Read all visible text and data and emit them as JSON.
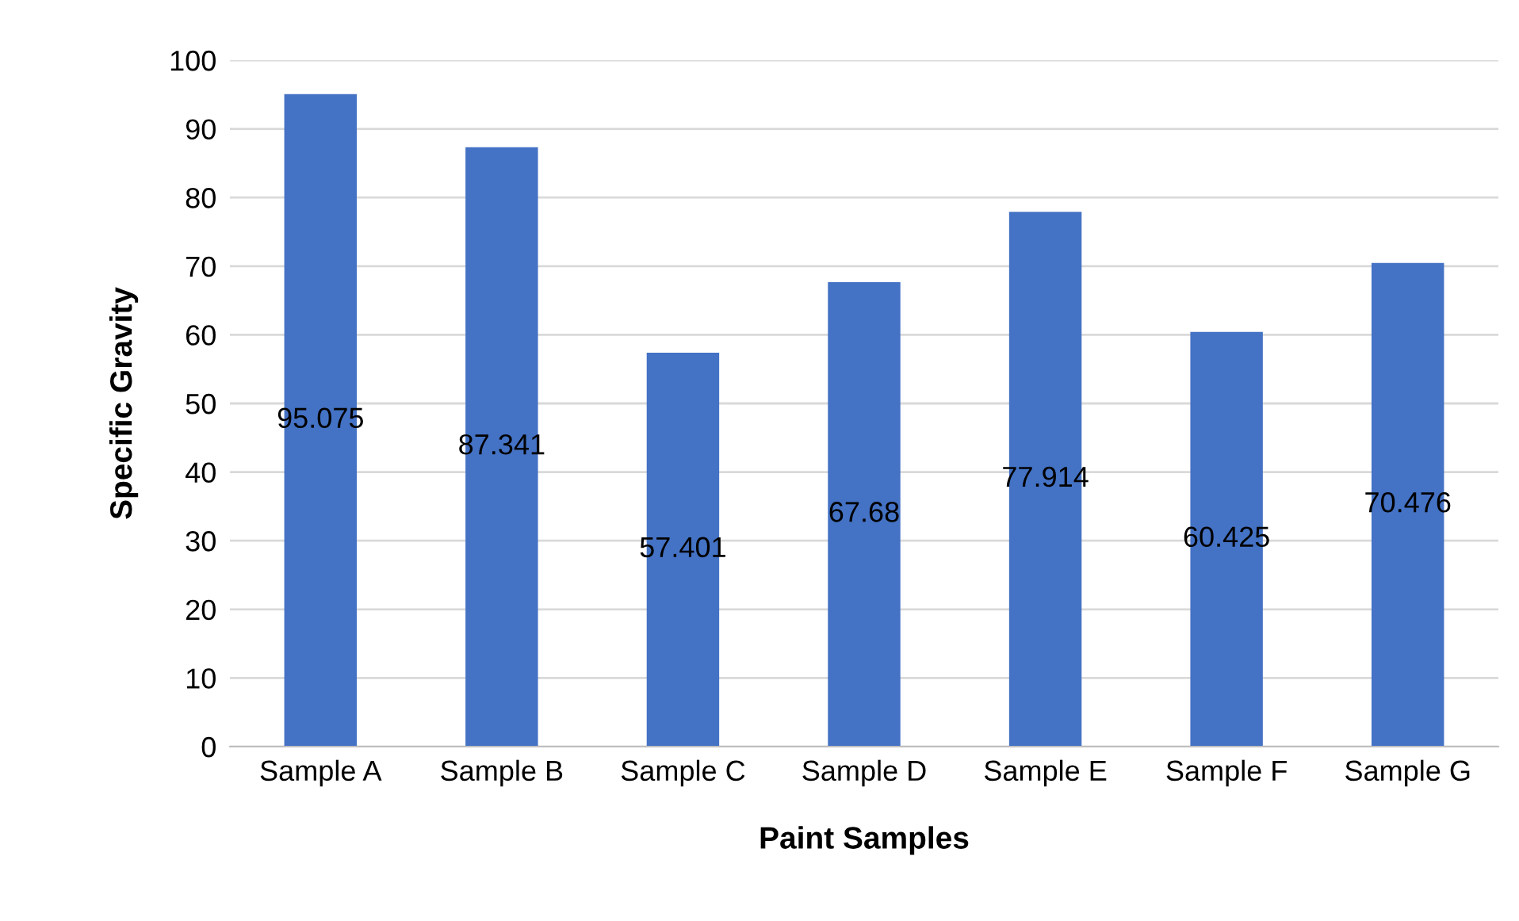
{
  "chart_data": {
    "type": "bar",
    "xlabel": "Paint Samples",
    "ylabel": "Specific Gravity",
    "categories": [
      "Sample A",
      "Sample B",
      "Sample C",
      "Sample D",
      "Sample E",
      "Sample F",
      "Sample G"
    ],
    "values": [
      95.075,
      87.341,
      57.401,
      67.68,
      77.914,
      60.425,
      70.476
    ],
    "color": "#4472c4",
    "ylim": [
      0,
      100
    ],
    "yticks": [
      0,
      10,
      20,
      30,
      40,
      50,
      60,
      70,
      80,
      90,
      100
    ],
    "grid": "y",
    "data_labels": true
  }
}
